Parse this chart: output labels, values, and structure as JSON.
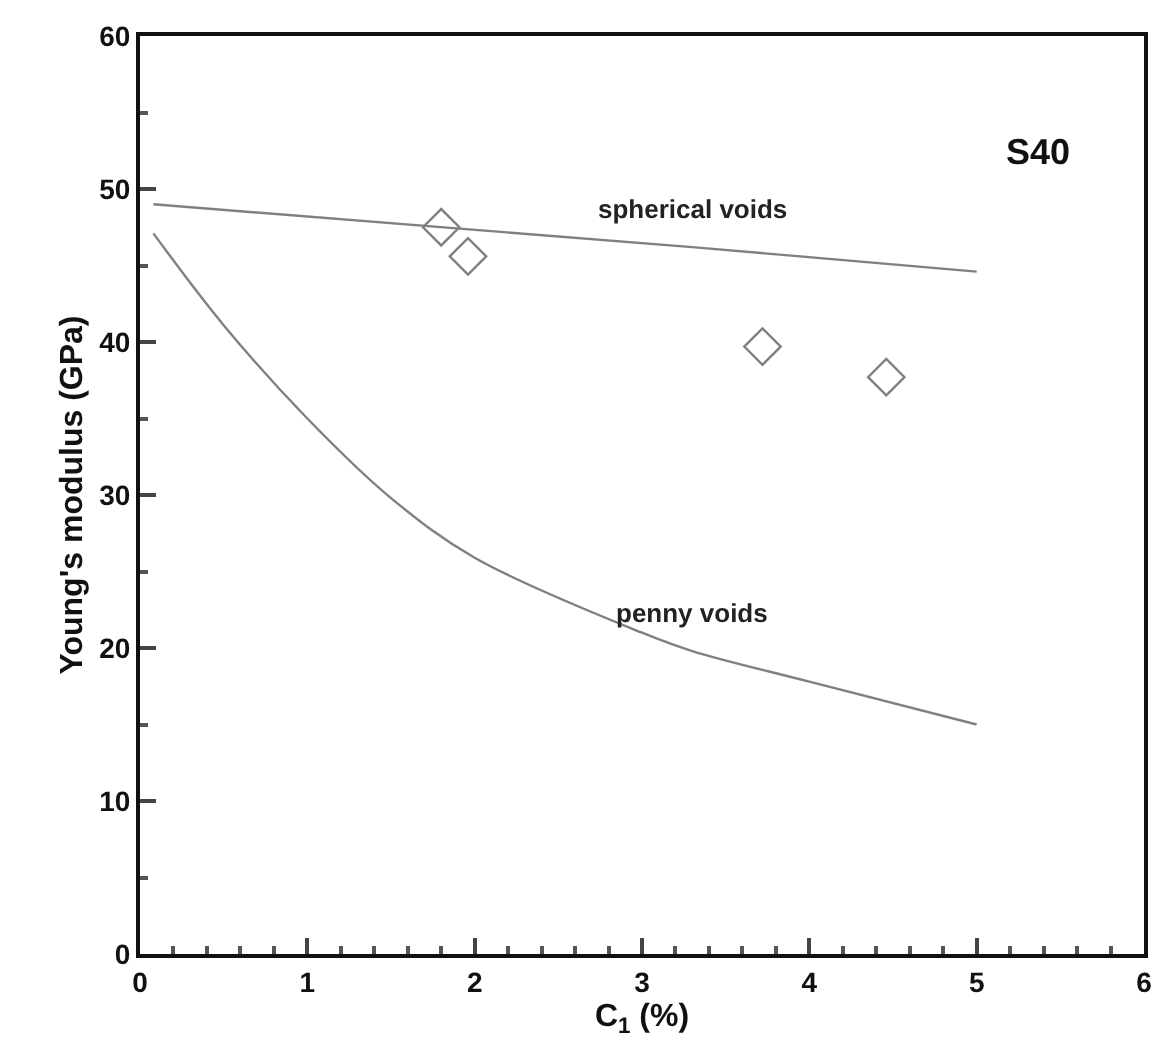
{
  "chart_data": {
    "type": "line",
    "xlabel": "C$_{1}$ (%)",
    "ylabel": "Young's modulus (GPa)",
    "annotations": [
      "S40"
    ],
    "xlim": [
      0,
      6
    ],
    "xticks": [
      0,
      1,
      2,
      3,
      4,
      5,
      6
    ],
    "ylim": [
      0,
      60
    ],
    "yticks": [
      0,
      10,
      20,
      30,
      40,
      50,
      60
    ],
    "grid": false,
    "marker": "none",
    "line_style": "solid",
    "series": [
      {
        "name": "spherical voids",
        "color": "#808080",
        "x": [
          0.08,
          3.3,
          5
        ],
        "values": [
          49.0,
          46.2,
          44.6
        ]
      },
      {
        "name": "penny voids",
        "color": "#808080",
        "x": [
          0.08,
          0.5,
          1,
          1.5,
          2,
          3,
          3.3,
          4,
          5
        ],
        "values": [
          47.1,
          41.1,
          35.0,
          29.8,
          25.9,
          21.0,
          19.8,
          17.8,
          15.0
        ]
      },
      {
        "type": "scatter",
        "color": "#808080",
        "marker": "diamond",
        "x": [
          1.8,
          1.96,
          3.72,
          4.46
        ],
        "values": [
          47.5,
          45.6,
          39.7,
          37.7
        ]
      }
    ]
  }
}
